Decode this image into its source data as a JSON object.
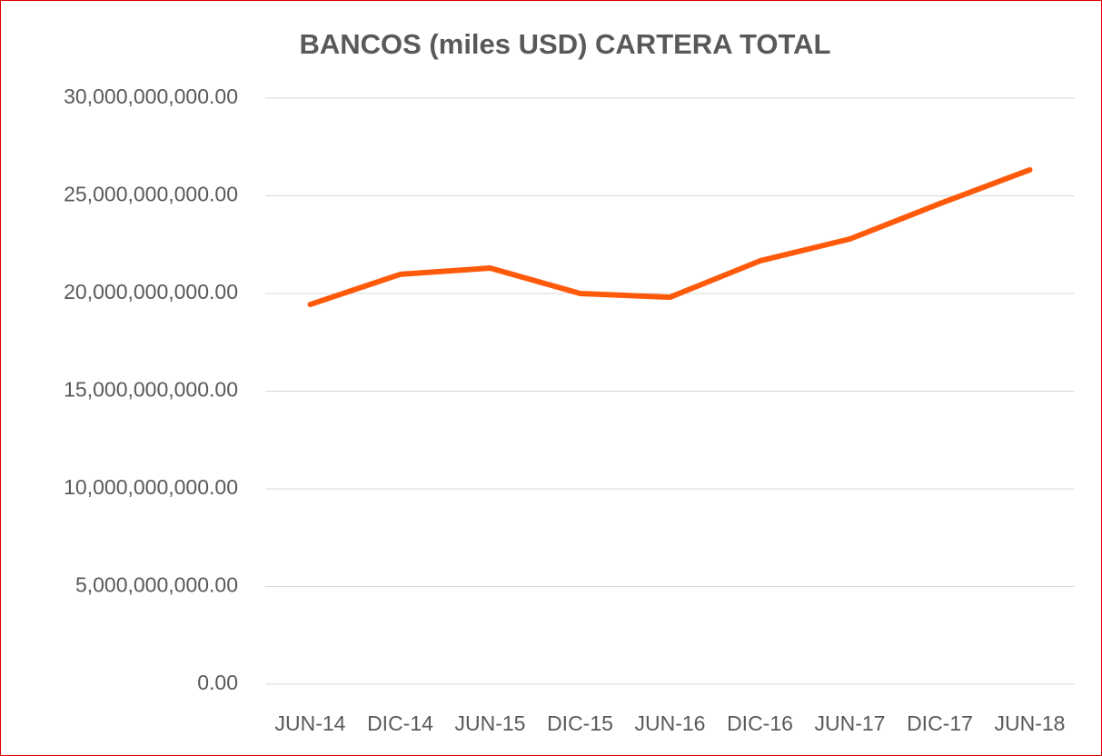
{
  "chart_data": {
    "type": "line",
    "title": "BANCOS (miles USD) CARTERA TOTAL",
    "categories": [
      "JUN-14",
      "DIC-14",
      "JUN-15",
      "DIC-15",
      "JUN-16",
      "DIC-16",
      "JUN-17",
      "DIC-17",
      "JUN-18"
    ],
    "series": [
      {
        "name": "CARTERA TOTAL",
        "color": "#ff5a0a",
        "values": [
          19440000000,
          20980000000,
          21300000000,
          20000000000,
          19810000000,
          21670000000,
          22790000000,
          24600000000,
          26330000000
        ]
      }
    ],
    "ylim": [
      0,
      30000000000
    ],
    "yticks": [
      {
        "value": 0,
        "label": "0.00"
      },
      {
        "value": 5000000000,
        "label": "5,000,000,000.00"
      },
      {
        "value": 10000000000,
        "label": "10,000,000,000.00"
      },
      {
        "value": 15000000000,
        "label": "15,000,000,000.00"
      },
      {
        "value": 20000000000,
        "label": "20,000,000,000.00"
      },
      {
        "value": 25000000000,
        "label": "25,000,000,000.00"
      },
      {
        "value": 30000000000,
        "label": "30,000,000,000.00"
      }
    ],
    "grid": true
  }
}
